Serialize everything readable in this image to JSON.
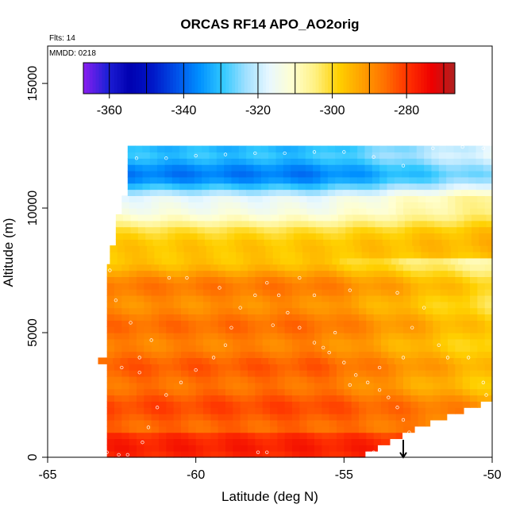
{
  "chart_data": {
    "type": "heatmap",
    "title": "ORCAS RF14 APO_AO2orig",
    "flights_text": "Flts: 14",
    "mmdd_text": "MMDD: 0218",
    "xlabel": "Latitude (deg N)",
    "ylabel": "Altitude (m)",
    "xlim": [
      -65,
      -50
    ],
    "ylim": [
      0,
      16500
    ],
    "x_ticks": [
      -65,
      -60,
      -55,
      -50
    ],
    "x_tick_labels": [
      "-65",
      "-60",
      "-55",
      "-50"
    ],
    "y_ticks": [
      0,
      5000,
      10000,
      15000
    ],
    "y_tick_labels": [
      "0",
      "5000",
      "10000",
      "15000"
    ],
    "colorbar": {
      "min": -367,
      "max": -267,
      "ticks": [
        -360,
        -340,
        -320,
        -300,
        -280
      ],
      "tick_labels": [
        "-360",
        "-340",
        "-320",
        "-300",
        "-280"
      ],
      "colors": [
        "#8b1ff0",
        "#2020d8",
        "#0000b0",
        "#0018c8",
        "#0050e8",
        "#0090ff",
        "#30c8ff",
        "#a0e0ff",
        "#e8f8ff",
        "#ffffd0",
        "#fff080",
        "#ffd000",
        "#ffa000",
        "#ff7000",
        "#ff3000",
        "#ee0000",
        "#b02020"
      ]
    },
    "field_summary": {
      "high_altitude_upper_value": -330,
      "high_altitude_peak_value": -338,
      "mid_altitude_value": -300,
      "low_altitude_value": -283,
      "boundary_layer_value": -279,
      "northern_low_value": -295
    },
    "flight_track": [
      [
        -63.0,
        200
      ],
      [
        -62.6,
        100
      ],
      [
        -62.3,
        100
      ],
      [
        -61.8,
        600
      ],
      [
        -61.6,
        1200
      ],
      [
        -61.3,
        2000
      ],
      [
        -61.0,
        2500
      ],
      [
        -60.5,
        3000
      ],
      [
        -60.0,
        3500
      ],
      [
        -59.4,
        4000
      ],
      [
        -59.0,
        4500
      ],
      [
        -58.8,
        5200
      ],
      [
        -58.5,
        6000
      ],
      [
        -58.0,
        6500
      ],
      [
        -57.6,
        7000
      ],
      [
        -57.2,
        6500
      ],
      [
        -56.9,
        5800
      ],
      [
        -56.5,
        5200
      ],
      [
        -56.0,
        4600
      ],
      [
        -55.5,
        4200
      ],
      [
        -55.0,
        3800
      ],
      [
        -54.6,
        3300
      ],
      [
        -54.2,
        3000
      ],
      [
        -53.8,
        2700
      ],
      [
        -53.5,
        2400
      ],
      [
        -53.2,
        2000
      ],
      [
        -53.0,
        1500
      ],
      [
        -52.8,
        1000
      ],
      [
        -53.2,
        600
      ],
      [
        -53.5,
        400
      ],
      [
        -54.0,
        200
      ],
      [
        -57.6,
        200
      ],
      [
        -57.9,
        200
      ],
      [
        -62.9,
        7500
      ],
      [
        -62.7,
        6300
      ],
      [
        -62.2,
        5400
      ],
      [
        -61.5,
        4700
      ],
      [
        -61.9,
        4000
      ],
      [
        -62.5,
        3600
      ],
      [
        -61.9,
        3400
      ],
      [
        -60.9,
        7200
      ],
      [
        -60.3,
        7200
      ],
      [
        -59.2,
        6800
      ],
      [
        -57.4,
        5300
      ],
      [
        -56.5,
        7200
      ],
      [
        -56.0,
        6500
      ],
      [
        -54.8,
        6700
      ],
      [
        -53.2,
        6600
      ],
      [
        -52.7,
        5200
      ],
      [
        -52.3,
        6000
      ],
      [
        -51.8,
        4500
      ],
      [
        -51.5,
        4000
      ],
      [
        -50.8,
        4000
      ],
      [
        -50.3,
        3000
      ],
      [
        -50.2,
        2500
      ],
      [
        -53.0,
        4000
      ],
      [
        -53.8,
        3600
      ],
      [
        -55.3,
        5000
      ],
      [
        -55.7,
        4400
      ],
      [
        -54.8,
        2900
      ],
      [
        -62.0,
        12000
      ],
      [
        -61.0,
        12000
      ],
      [
        -60.0,
        12100
      ],
      [
        -59.0,
        12150
      ],
      [
        -58.0,
        12200
      ],
      [
        -57.0,
        12200
      ],
      [
        -56.0,
        12250
      ],
      [
        -55.0,
        12250
      ],
      [
        -54.0,
        12050
      ],
      [
        -53.0,
        11700
      ],
      [
        -52.0,
        12400
      ],
      [
        -51.0,
        12450
      ],
      [
        -50.3,
        12400
      ]
    ],
    "arrow": {
      "x": -53.0,
      "y_from": 700,
      "y_to": 0
    }
  }
}
